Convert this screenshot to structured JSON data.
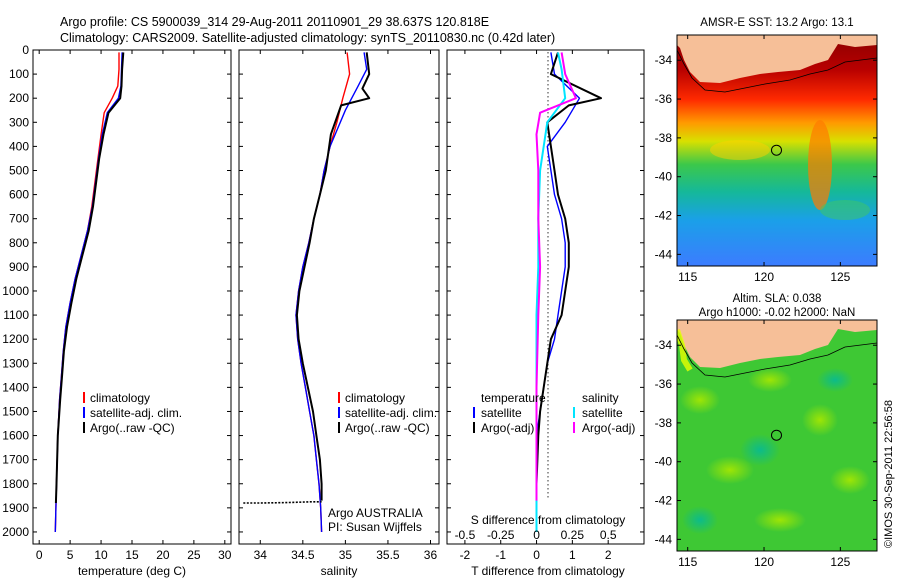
{
  "header": {
    "line1": "Argo profile: CS 5900039_314 29-Aug-2011 20110901_29 38.637S 120.818E",
    "line2": "Climatology: CARS2009. Satellite-adjusted climatology: synTS_20110830.nc (0.42d later)"
  },
  "side_text": "©IMOS 30-Sep-2011 22:56:58",
  "colors": {
    "climatology": "#ff0000",
    "satellite": "#0000ff",
    "argo": "#000000",
    "s_satellite": "#00e5ff",
    "s_argo": "#ff00ff",
    "land": "#f6bf98"
  },
  "chart_data": [
    {
      "type": "line",
      "xlabel": "temperature (deg C)",
      "ylabel": "",
      "xlim": [
        -1,
        31
      ],
      "ylim": [
        2050,
        0
      ],
      "xticks": [
        "0",
        "5",
        "10",
        "15",
        "20",
        "25",
        "30"
      ],
      "xtick_values": [
        0,
        5,
        10,
        15,
        20,
        25,
        30
      ],
      "yticks": [
        "0",
        "100",
        "200",
        "300",
        "400",
        "500",
        "600",
        "700",
        "800",
        "900",
        "1000",
        "1100",
        "1200",
        "1300",
        "1400",
        "1500",
        "1600",
        "1700",
        "1800",
        "1900",
        "2000"
      ],
      "ytick_values": [
        0,
        100,
        200,
        300,
        400,
        500,
        600,
        700,
        800,
        900,
        1000,
        1100,
        1200,
        1300,
        1400,
        1500,
        1600,
        1700,
        1800,
        1900,
        2000
      ],
      "legend": [
        "climatology",
        "satellite-adj. clim.",
        "Argo(..raw -QC)"
      ],
      "series": [
        {
          "name": "climatology",
          "values": [
            [
              12.9,
              10
            ],
            [
              12.9,
              80
            ],
            [
              12.7,
              150
            ],
            [
              11.8,
              200
            ],
            [
              10.5,
              260
            ],
            [
              10.0,
              350
            ],
            [
              9.5,
              450
            ],
            [
              9.0,
              550
            ],
            [
              8.5,
              650
            ],
            [
              7.8,
              750
            ],
            [
              6.8,
              850
            ],
            [
              5.8,
              950
            ],
            [
              5.0,
              1050
            ],
            [
              4.3,
              1150
            ],
            [
              3.9,
              1250
            ],
            [
              3.6,
              1350
            ],
            [
              3.3,
              1450
            ],
            [
              3.0,
              1600
            ],
            [
              2.8,
              1800
            ],
            [
              2.6,
              2000
            ]
          ]
        },
        {
          "name": "satellite-adj. clim.",
          "values": [
            [
              13.4,
              10
            ],
            [
              13.3,
              80
            ],
            [
              13.2,
              150
            ],
            [
              12.8,
              200
            ],
            [
              11.0,
              260
            ],
            [
              10.2,
              350
            ],
            [
              9.6,
              450
            ],
            [
              9.1,
              550
            ],
            [
              8.6,
              650
            ],
            [
              7.8,
              750
            ],
            [
              6.8,
              850
            ],
            [
              5.8,
              950
            ],
            [
              5.0,
              1050
            ],
            [
              4.3,
              1150
            ],
            [
              3.9,
              1250
            ],
            [
              3.6,
              1350
            ],
            [
              3.3,
              1450
            ],
            [
              3.0,
              1600
            ],
            [
              2.8,
              1800
            ],
            [
              2.6,
              2000
            ]
          ]
        },
        {
          "name": "Argo(..raw -QC)",
          "values": [
            [
              13.6,
              10
            ],
            [
              13.4,
              80
            ],
            [
              13.3,
              150
            ],
            [
              13.1,
              200
            ],
            [
              11.2,
              260
            ],
            [
              10.4,
              350
            ],
            [
              9.7,
              450
            ],
            [
              9.2,
              550
            ],
            [
              8.7,
              650
            ],
            [
              8.0,
              750
            ],
            [
              7.0,
              850
            ],
            [
              6.0,
              950
            ],
            [
              5.2,
              1050
            ],
            [
              4.5,
              1150
            ],
            [
              4.0,
              1250
            ],
            [
              3.7,
              1350
            ],
            [
              3.4,
              1450
            ],
            [
              3.0,
              1600
            ],
            [
              2.8,
              1800
            ],
            [
              2.7,
              1880
            ]
          ]
        }
      ]
    },
    {
      "type": "line",
      "xlabel": "salinity",
      "xlim": [
        33.75,
        36.1
      ],
      "ylim": [
        2050,
        0
      ],
      "xticks": [
        "34",
        "34.5",
        "35",
        "35.5",
        "36"
      ],
      "xtick_values": [
        34,
        34.5,
        35,
        35.5,
        36
      ],
      "legend": [
        "climatology",
        "satellite-adj. clim.",
        "Argo(..raw -QC)"
      ],
      "annotations": [
        "Argo AUSTRALIA",
        "PI: Susan Wijffels"
      ],
      "series": [
        {
          "name": "climatology",
          "values": [
            [
              35.02,
              10
            ],
            [
              35.05,
              100
            ],
            [
              34.97,
              200
            ],
            [
              34.9,
              300
            ],
            [
              34.82,
              400
            ],
            [
              34.75,
              500
            ],
            [
              34.7,
              600
            ],
            [
              34.63,
              700
            ],
            [
              34.57,
              800
            ],
            [
              34.5,
              900
            ],
            [
              34.45,
              1000
            ],
            [
              34.42,
              1100
            ],
            [
              34.44,
              1200
            ],
            [
              34.48,
              1300
            ],
            [
              34.53,
              1400
            ],
            [
              34.58,
              1500
            ],
            [
              34.63,
              1600
            ],
            [
              34.66,
              1700
            ],
            [
              34.69,
              1800
            ],
            [
              34.71,
              1900
            ],
            [
              34.72,
              2000
            ]
          ]
        },
        {
          "name": "satellite-adj. clim.",
          "values": [
            [
              35.22,
              10
            ],
            [
              35.25,
              80
            ],
            [
              35.15,
              150
            ],
            [
              35.0,
              250
            ],
            [
              34.82,
              400
            ],
            [
              34.75,
              500
            ],
            [
              34.7,
              600
            ],
            [
              34.63,
              700
            ],
            [
              34.57,
              800
            ],
            [
              34.5,
              900
            ],
            [
              34.45,
              1000
            ],
            [
              34.42,
              1100
            ],
            [
              34.44,
              1200
            ],
            [
              34.48,
              1300
            ],
            [
              34.53,
              1400
            ],
            [
              34.58,
              1500
            ],
            [
              34.63,
              1600
            ],
            [
              34.66,
              1700
            ],
            [
              34.69,
              1800
            ],
            [
              34.71,
              1900
            ],
            [
              34.72,
              2000
            ]
          ]
        },
        {
          "name": "Argo(..raw -QC)",
          "values": [
            [
              35.25,
              10
            ],
            [
              35.28,
              100
            ],
            [
              35.2,
              160
            ],
            [
              35.28,
              200
            ],
            [
              34.95,
              230
            ],
            [
              34.83,
              350
            ],
            [
              34.77,
              500
            ],
            [
              34.7,
              600
            ],
            [
              34.63,
              700
            ],
            [
              34.58,
              800
            ],
            [
              34.52,
              900
            ],
            [
              34.46,
              1000
            ],
            [
              34.43,
              1100
            ],
            [
              34.45,
              1200
            ],
            [
              34.5,
              1300
            ],
            [
              34.56,
              1400
            ],
            [
              34.62,
              1500
            ],
            [
              34.66,
              1600
            ],
            [
              34.7,
              1700
            ],
            [
              34.72,
              1800
            ],
            [
              34.72,
              1870
            ]
          ]
        },
        {
          "name": "",
          "values": [
            [
              33.8,
              1880
            ],
            [
              34.0,
              1880
            ],
            [
              34.3,
              1878
            ],
            [
              34.6,
              1875
            ],
            [
              34.72,
              1875
            ]
          ]
        }
      ]
    },
    {
      "type": "line",
      "xlabel": "T difference from climatology",
      "title_bottom": "S difference from climatology",
      "xlim": [
        -2.5,
        3.0
      ],
      "ylim": [
        2050,
        0
      ],
      "xticks": [
        "-2",
        "-1",
        "0",
        "1",
        "2"
      ],
      "xtick_values": [
        -2,
        -1,
        0,
        1,
        2
      ],
      "xticks_top": [
        "-0.5",
        "-0.25",
        "0",
        "0.25",
        "0.5"
      ],
      "xtick_values_top": [
        -0.5,
        -0.25,
        0,
        0.25,
        0.5
      ],
      "legend_headers": [
        "temperature",
        "salinity"
      ],
      "legend": [
        "satellite",
        "Argo(-adj)",
        "satellite",
        "Argo(-adj)"
      ],
      "series": [
        {
          "name": "satellite",
          "values": [
            [
              0.4,
              10
            ],
            [
              0.5,
              100
            ],
            [
              1.2,
              200
            ],
            [
              0.8,
              300
            ],
            [
              0.3,
              400
            ],
            [
              0.4,
              500
            ],
            [
              0.5,
              600
            ],
            [
              0.7,
              700
            ],
            [
              0.8,
              800
            ],
            [
              0.8,
              900
            ],
            [
              0.7,
              1000
            ],
            [
              0.6,
              1100
            ],
            [
              0.5,
              1200
            ],
            [
              0.3,
              1300
            ],
            [
              0.2,
              1400
            ],
            [
              0.1,
              1500
            ],
            [
              0.0,
              1600
            ],
            [
              0.0,
              1800
            ],
            [
              0.0,
              2000
            ]
          ]
        },
        {
          "name": "Argo(-adj)",
          "values": [
            [
              0.6,
              10
            ],
            [
              0.4,
              100
            ],
            [
              1.8,
              200
            ],
            [
              0.9,
              230
            ],
            [
              0.3,
              300
            ],
            [
              0.4,
              400
            ],
            [
              0.5,
              500
            ],
            [
              0.6,
              600
            ],
            [
              0.8,
              700
            ],
            [
              0.9,
              800
            ],
            [
              0.9,
              900
            ],
            [
              0.8,
              1000
            ],
            [
              0.7,
              1100
            ],
            [
              0.4,
              1200
            ],
            [
              0.3,
              1300
            ],
            [
              0.2,
              1400
            ],
            [
              0.1,
              1500
            ],
            [
              0.05,
              1600
            ],
            [
              0.0,
              1800
            ],
            [
              0.0,
              1880
            ]
          ]
        },
        {
          "name": "satellite",
          "values": [
            [
              0.6,
              10
            ],
            [
              0.7,
              80
            ],
            [
              0.8,
              200
            ],
            [
              0.3,
              300
            ],
            [
              0.2,
              400
            ],
            [
              0.1,
              500
            ],
            [
              0.05,
              700
            ],
            [
              0.05,
              900
            ],
            [
              0.0,
              1100
            ],
            [
              0.0,
              1400
            ],
            [
              0.0,
              1700
            ],
            [
              0.0,
              2000
            ]
          ]
        },
        {
          "name": "Argo(-adj)",
          "values": [
            [
              0.7,
              10
            ],
            [
              0.8,
              100
            ],
            [
              1.1,
              200
            ],
            [
              0.1,
              260
            ],
            [
              0.0,
              350
            ],
            [
              0.05,
              500
            ],
            [
              0.05,
              700
            ],
            [
              0.1,
              900
            ],
            [
              0.05,
              1100
            ],
            [
              0.0,
              1400
            ],
            [
              0.0,
              1700
            ],
            [
              0.0,
              1870
            ]
          ]
        }
      ]
    }
  ],
  "maps": [
    {
      "title": "AMSR-E SST: 13.2 Argo: 13.1",
      "xticks": [
        "115",
        "120",
        "125"
      ],
      "xtick_values": [
        115,
        120,
        125
      ],
      "yticks": [
        "-34",
        "-36",
        "-38",
        "-40",
        "-42",
        "-44"
      ],
      "ytick_values": [
        -34,
        -36,
        -38,
        -40,
        -42,
        -44
      ],
      "xlim": [
        114.3,
        127.4
      ],
      "ylim": [
        -32.7,
        -44.6
      ],
      "marker": [
        120.818,
        -38.637
      ]
    },
    {
      "title": "Altim. SLA: 0.038",
      "subtitle": "Argo h1000: -0.02 h2000: NaN",
      "xticks": [
        "115",
        "120",
        "125"
      ],
      "xtick_values": [
        115,
        120,
        125
      ],
      "yticks": [
        "-34",
        "-36",
        "-38",
        "-40",
        "-42",
        "-44"
      ],
      "ytick_values": [
        -34,
        -36,
        -38,
        -40,
        -42,
        -44
      ],
      "xlim": [
        114.3,
        127.4
      ],
      "ylim": [
        -32.7,
        -44.6
      ],
      "marker": [
        120.818,
        -38.637
      ]
    }
  ]
}
